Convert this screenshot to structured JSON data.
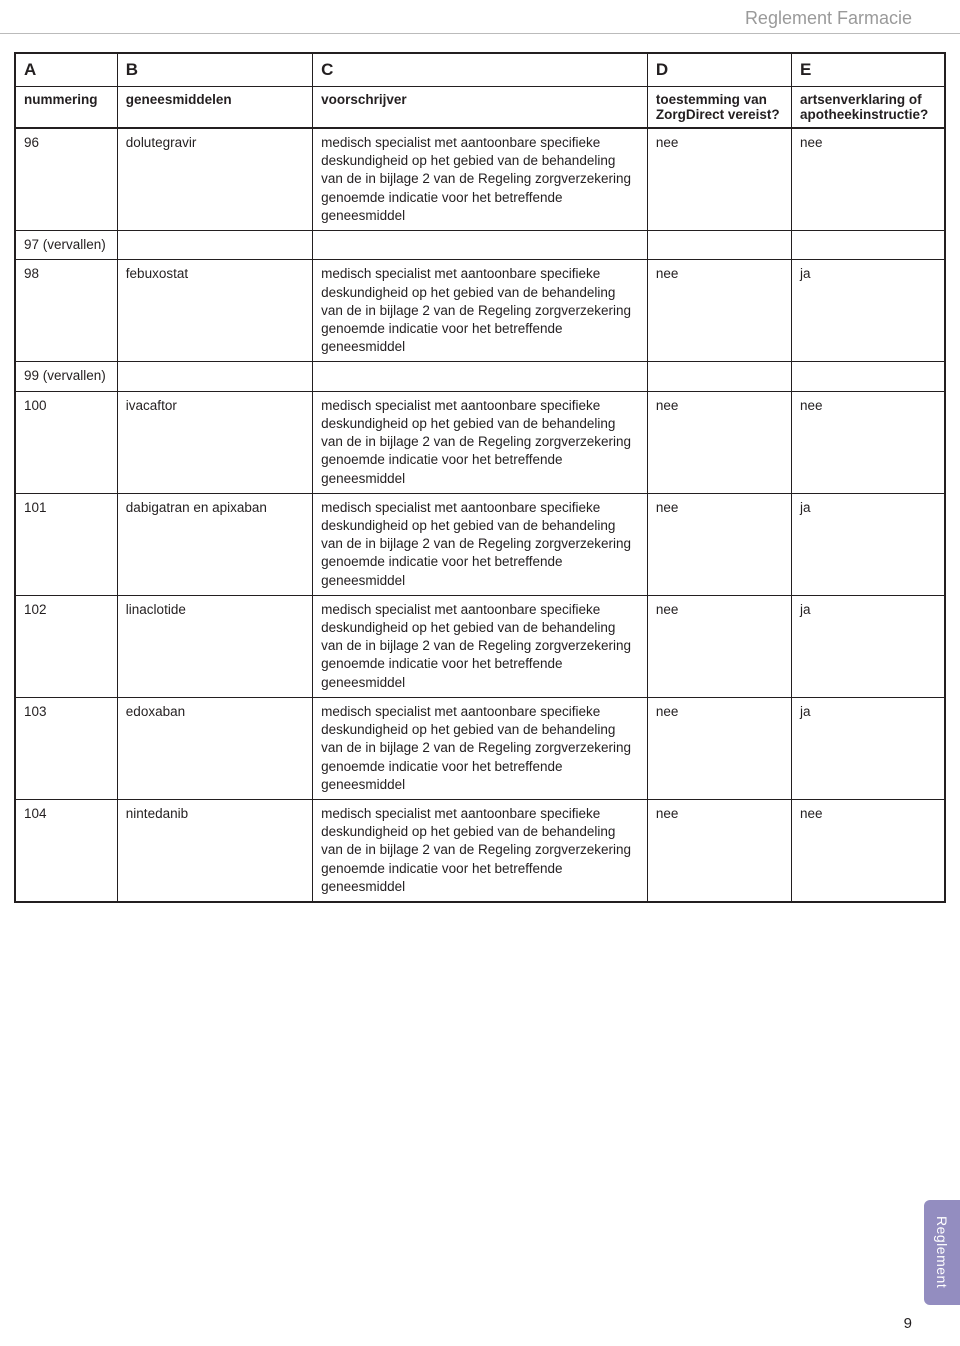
{
  "header_title": "Reglement Farmacie",
  "columns": {
    "letters": [
      "A",
      "B",
      "C",
      "D",
      "E"
    ],
    "labels": [
      "nummering",
      "geneesmiddelen",
      "voorschrijver",
      "toestemming van ZorgDirect vereist?",
      "artsenverklaring of apotheekinstructie?"
    ]
  },
  "long_text": "medisch specialist met aantoonbare specifieke deskundigheid op het gebied van de behandeling van de in bijlage 2 van de Regeling zorgverzekering genoemde indicatie voor het betreffende geneesmiddel",
  "rows": [
    {
      "num": "96",
      "drug": "dolutegravir",
      "prescriber_key": "long_text",
      "d": "nee",
      "e": "nee"
    },
    {
      "num": "97 (vervallen)",
      "drug": "",
      "prescriber_key": "",
      "d": "",
      "e": ""
    },
    {
      "num": "98",
      "drug": "febuxostat",
      "prescriber_key": "long_text",
      "d": "nee",
      "e": "ja"
    },
    {
      "num": "99 (vervallen)",
      "drug": "",
      "prescriber_key": "",
      "d": "",
      "e": ""
    },
    {
      "num": "100",
      "drug": "ivacaftor",
      "prescriber_key": "long_text",
      "d": "nee",
      "e": "nee"
    },
    {
      "num": "101",
      "drug": "dabigatran en apixaban",
      "prescriber_key": "long_text",
      "d": "nee",
      "e": "ja"
    },
    {
      "num": "102",
      "drug": "linaclotide",
      "prescriber_key": "long_text",
      "d": "nee",
      "e": "ja"
    },
    {
      "num": "103",
      "drug": "edoxaban",
      "prescriber_key": "long_text",
      "d": "nee",
      "e": "ja"
    },
    {
      "num": "104",
      "drug": "nintedanib",
      "prescriber_key": "long_text",
      "d": "nee",
      "e": "nee"
    }
  ],
  "side_tab_label": "Reglement",
  "page_number": "9",
  "colors": {
    "text": "#231f20",
    "header_text": "#9a9a9a",
    "tab_bg": "#938dc0",
    "tab_text": "#ffffff",
    "border": "#231f20"
  }
}
